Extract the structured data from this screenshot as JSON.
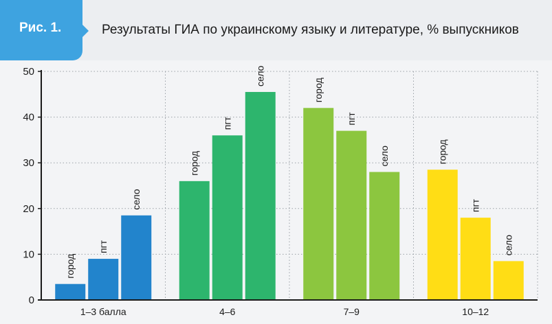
{
  "figure": {
    "label": "Рис. 1.",
    "title": "Результаты ГИА по украинскому языку и литературе, % выпускников"
  },
  "colors": {
    "badge": "#3ea3e0",
    "header_bg": "#eceef1",
    "chart_bg": "#f3f4f6"
  },
  "chart_data": {
    "type": "bar",
    "title": "Результаты ГИА по украинскому языку и литературе, % выпускников",
    "xlabel": "",
    "ylabel": "",
    "ylim": [
      0,
      50
    ],
    "yticks": [
      0,
      10,
      20,
      30,
      40,
      50
    ],
    "grid": true,
    "categories": [
      "1–3 балла",
      "4–6",
      "7–9",
      "10–12"
    ],
    "group_colors": [
      "#2284cc",
      "#2db56d",
      "#8cc63f",
      "#ffdd15"
    ],
    "series": [
      {
        "name": "город",
        "values": [
          3.5,
          26,
          42,
          28.5
        ]
      },
      {
        "name": "пгт",
        "values": [
          9,
          36,
          37,
          18
        ]
      },
      {
        "name": "село",
        "values": [
          18.5,
          45.5,
          28,
          8.5
        ]
      }
    ]
  }
}
